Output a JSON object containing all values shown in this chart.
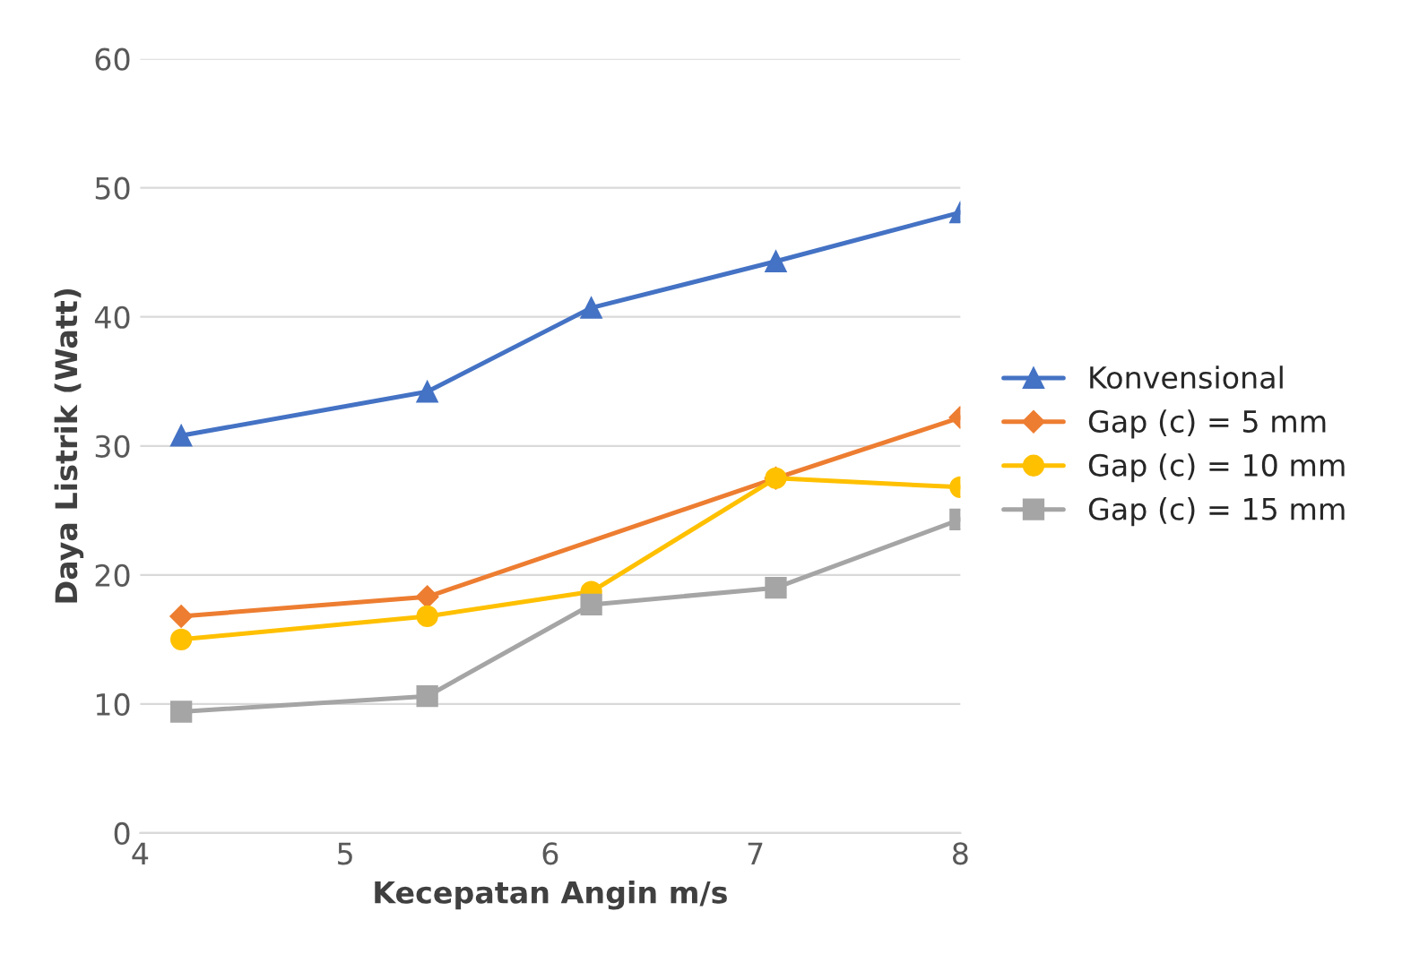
{
  "chart_data": {
    "type": "line",
    "xlabel": "Kecepatan Angin m/s",
    "ylabel": "Daya Listrik (Watt)",
    "xlim": [
      4,
      8
    ],
    "xticks": [
      4,
      5,
      6,
      7,
      8
    ],
    "ylim": [
      0,
      60
    ],
    "yticks": [
      0,
      10,
      20,
      30,
      40,
      50,
      60
    ],
    "grid": "y",
    "legend": "right",
    "series": [
      {
        "name": "Konvensional",
        "color": "#4472c4",
        "marker": "triangle",
        "x": [
          4.2,
          5.4,
          6.2,
          7.1,
          8
        ],
        "values": [
          30.8,
          34.2,
          40.7,
          44.3,
          48.1
        ]
      },
      {
        "name": "Gap (c) = 5 mm",
        "color": "#ed7d31",
        "marker": "diamond",
        "x": [
          4.2,
          5.4,
          7.1,
          8
        ],
        "values": [
          16.8,
          18.3,
          27.5,
          32.2
        ]
      },
      {
        "name": "Gap (c) = 10 mm",
        "color": "#ffc000",
        "marker": "circle",
        "x": [
          4.2,
          5.4,
          6.2,
          7.1,
          8
        ],
        "values": [
          15.0,
          16.8,
          18.7,
          27.5,
          26.8
        ]
      },
      {
        "name": "Gap (c) = 15 mm",
        "color": "#a5a5a5",
        "marker": "square",
        "x": [
          4.2,
          5.4,
          6.2,
          7.1,
          8
        ],
        "values": [
          9.4,
          10.6,
          17.7,
          19.0,
          24.3
        ]
      }
    ]
  }
}
